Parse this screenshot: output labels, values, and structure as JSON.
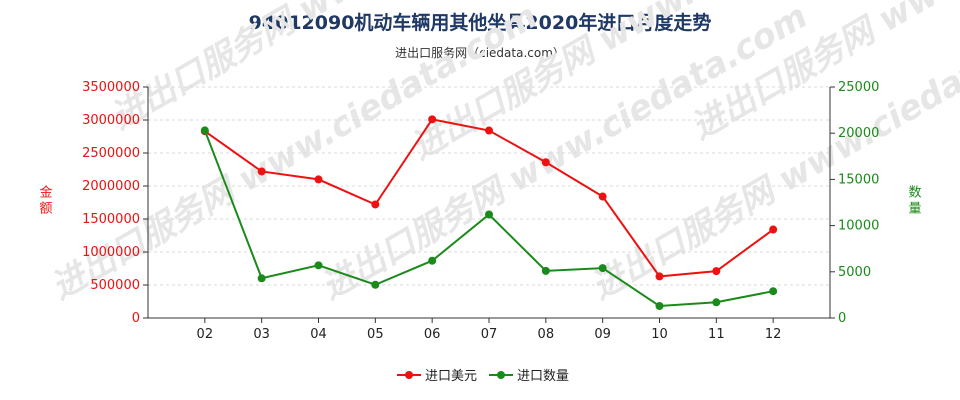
{
  "header": {
    "title": "94012090机动车辆用其他坐具2020年进口月度走势",
    "subtitle": "进出口服务网（ciedata.com）"
  },
  "watermark": "进出口服务网 www.ciedata.com",
  "chart_data": {
    "type": "line",
    "categories": [
      "02",
      "03",
      "04",
      "05",
      "06",
      "07",
      "08",
      "09",
      "10",
      "11",
      "12"
    ],
    "y_left": {
      "label": "金额",
      "ylim": [
        0,
        3500000
      ],
      "ticks": [
        "0",
        "500000",
        "1000000",
        "1500000",
        "2000000",
        "2500000",
        "3000000",
        "3500000"
      ],
      "color": "#ee1111"
    },
    "y_right": {
      "label": "数量",
      "ylim": [
        0,
        25000
      ],
      "ticks": [
        "0",
        "5000",
        "10000",
        "15000",
        "20000",
        "25000"
      ],
      "color": "#1a8a1a"
    },
    "series": [
      {
        "name": "进口美元",
        "axis": "left",
        "color": "#ee1111",
        "values": [
          2830000,
          2220000,
          2100000,
          1720000,
          3010000,
          2840000,
          2360000,
          1840000,
          630000,
          710000,
          1340000
        ]
      },
      {
        "name": "进口数量",
        "axis": "right",
        "color": "#1a8a1a",
        "values": [
          20300,
          4300,
          5700,
          3600,
          6200,
          11200,
          5100,
          5400,
          1300,
          1700,
          2900
        ]
      }
    ],
    "grid": true,
    "legend_position": "bottom-center"
  }
}
